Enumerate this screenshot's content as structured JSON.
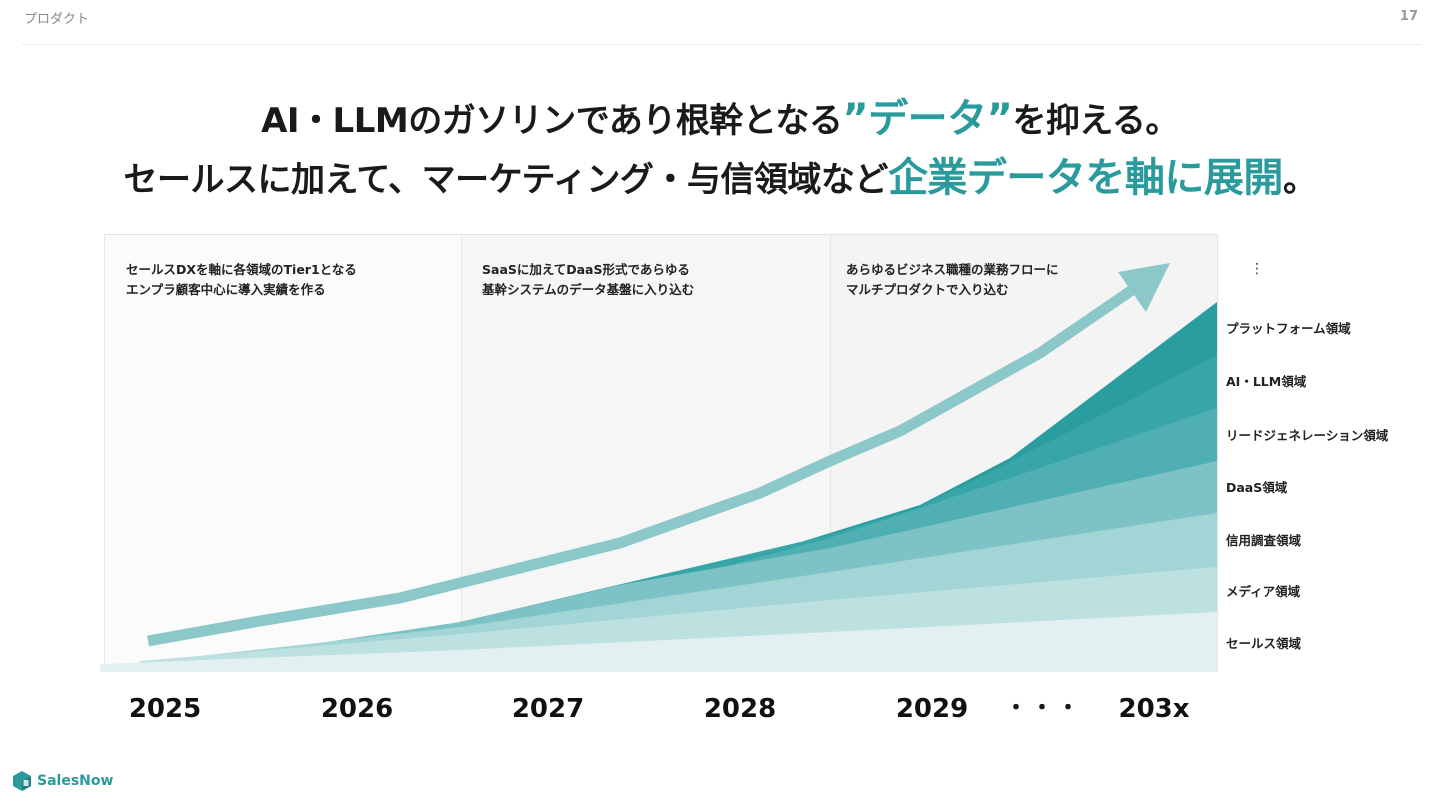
{
  "header": {
    "section": "プロダクト",
    "page_number": "17"
  },
  "title": {
    "line1_pre": "AI・LLMのガソリンであり根幹となる",
    "line1_accent": "”データ”",
    "line1_post": "を抑える。",
    "line2_pre": "セールスに加えて、マーケティング・与信領域など",
    "line2_accent": "企業データを軸に展開",
    "line2_post": "。"
  },
  "phases": [
    {
      "line1": "セールスDXを軸に各領域のTier1となる",
      "line2": "エンプラ顧客中心に導入実績を作る"
    },
    {
      "line1": "SaaSに加えてDaaS形式であらゆる",
      "line2": "基幹システムのデータ基盤に入り込む"
    },
    {
      "line1": "あらゆるビジネス職種の業務フローに",
      "line2": "マルチプロダクトで入り込む"
    }
  ],
  "years": [
    "2025",
    "2026",
    "2027",
    "2028",
    "2029",
    "203x"
  ],
  "ellipsis": "・・・",
  "vertical_ellipsis": "⋮",
  "layers": [
    {
      "label": "プラットフォーム領域",
      "color": "#2a9da0"
    },
    {
      "label": "AI・LLM領域",
      "color": "#38a5a8"
    },
    {
      "label": "リードジェネレーション領域",
      "color": "#4fafb2"
    },
    {
      "label": "DaaS領域",
      "color": "#7dc3c5"
    },
    {
      "label": "信用調査領域",
      "color": "#a4d5d6"
    },
    {
      "label": "メディア領域",
      "color": "#bde0e1"
    },
    {
      "label": "セールス領域",
      "color": "#e2f0f1"
    }
  ],
  "arrow_color": "#8cc7c9",
  "brand": {
    "name": "SalesNow",
    "color": "#2b9a9c"
  }
}
